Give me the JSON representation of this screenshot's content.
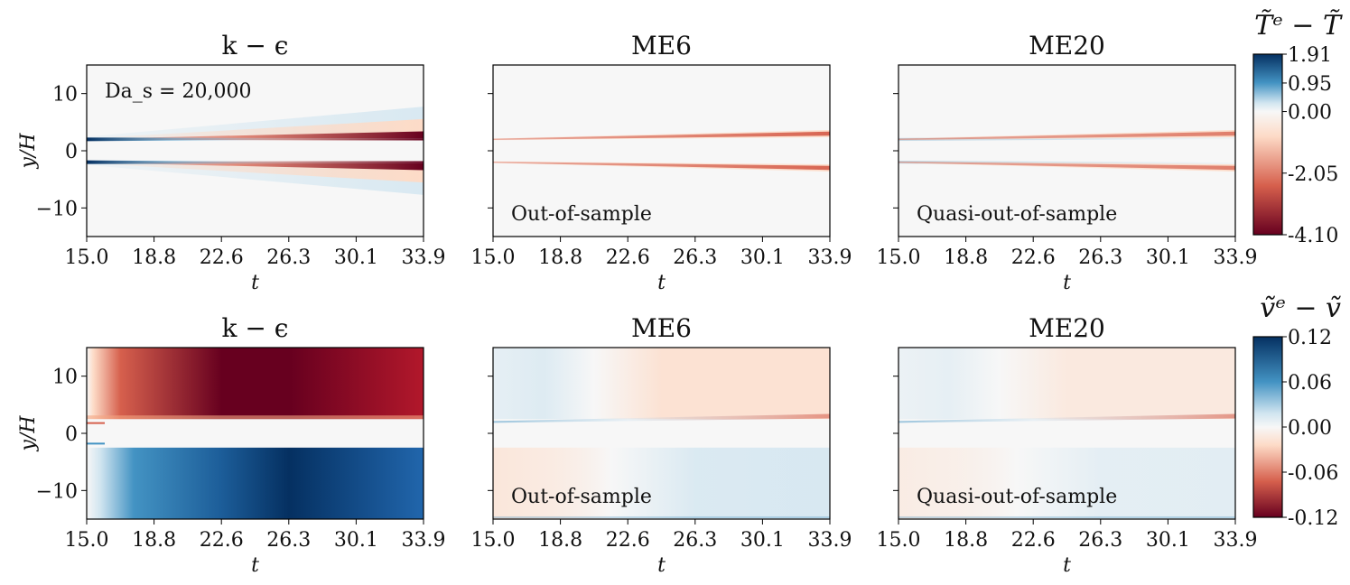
{
  "chart_data": [
    {
      "type": "heatmap",
      "row": "top",
      "title": "k − ϵ",
      "xlabel": "t",
      "ylabel": "y/H",
      "xticks": [
        "15.0",
        "18.8",
        "22.6",
        "26.3",
        "30.1",
        "33.9"
      ],
      "xlim": [
        15.0,
        33.9
      ],
      "yticks": [
        "10",
        "0",
        "−10"
      ],
      "ytick_values": [
        10,
        0,
        -10
      ],
      "ylim": [
        -15,
        15
      ],
      "annotation": "Da_s = 20,000",
      "field": "temperature",
      "case": "keps"
    },
    {
      "type": "heatmap",
      "row": "top",
      "title": "ME6",
      "xlabel": "t",
      "xticks": [
        "15.0",
        "18.8",
        "22.6",
        "26.3",
        "30.1",
        "33.9"
      ],
      "xlim": [
        15.0,
        33.9
      ],
      "ylim": [
        -15,
        15
      ],
      "annotation": "Out-of-sample",
      "field": "temperature",
      "case": "me6"
    },
    {
      "type": "heatmap",
      "row": "top",
      "title": "ME20",
      "xlabel": "t",
      "xticks": [
        "15.0",
        "18.8",
        "22.6",
        "26.3",
        "30.1",
        "33.9"
      ],
      "xlim": [
        15.0,
        33.9
      ],
      "ylim": [
        -15,
        15
      ],
      "annotation": "Quasi-out-of-sample",
      "field": "temperature",
      "case": "me20"
    },
    {
      "type": "heatmap",
      "row": "bottom",
      "title": "k − ϵ",
      "xlabel": "t",
      "ylabel": "y/H",
      "xticks": [
        "15.0",
        "18.8",
        "22.6",
        "26.3",
        "30.1",
        "33.9"
      ],
      "xlim": [
        15.0,
        33.9
      ],
      "yticks": [
        "10",
        "0",
        "−10"
      ],
      "ytick_values": [
        10,
        0,
        -10
      ],
      "ylim": [
        -15,
        15
      ],
      "field": "velocity",
      "case": "keps"
    },
    {
      "type": "heatmap",
      "row": "bottom",
      "title": "ME6",
      "xlabel": "t",
      "xticks": [
        "15.0",
        "18.8",
        "22.6",
        "26.3",
        "30.1",
        "33.9"
      ],
      "xlim": [
        15.0,
        33.9
      ],
      "ylim": [
        -15,
        15
      ],
      "annotation": "Out-of-sample",
      "field": "velocity",
      "case": "me6"
    },
    {
      "type": "heatmap",
      "row": "bottom",
      "title": "ME20",
      "xlabel": "t",
      "xticks": [
        "15.0",
        "18.8",
        "22.6",
        "26.3",
        "30.1",
        "33.9"
      ],
      "xlim": [
        15.0,
        33.9
      ],
      "ylim": [
        -15,
        15
      ],
      "annotation": "Quasi-out-of-sample",
      "field": "velocity",
      "case": "me20"
    }
  ],
  "colorbars": [
    {
      "label": "T̃ᵉ − T̃",
      "ticks": [
        "1.91",
        "0.95",
        "0.00",
        "-2.05",
        "-4.10"
      ],
      "tick_values": [
        1.91,
        0.95,
        0.0,
        -2.05,
        -4.1
      ],
      "range": [
        -4.1,
        1.91
      ]
    },
    {
      "label": "ṽᵉ − ṽ",
      "ticks": [
        "0.12",
        "0.06",
        "0.00",
        "-0.06",
        "-0.12"
      ],
      "tick_values": [
        0.12,
        0.06,
        0.0,
        -0.06,
        -0.12
      ],
      "range": [
        -0.12,
        0.12
      ]
    }
  ],
  "colors": {
    "dark_red": "#67001f",
    "red": "#d6604d",
    "light_red": "#fddbc7",
    "neutral": "#f7f7f7",
    "light_blue": "#d1e5f0",
    "blue": "#4393c3",
    "dark_blue": "#053061"
  }
}
